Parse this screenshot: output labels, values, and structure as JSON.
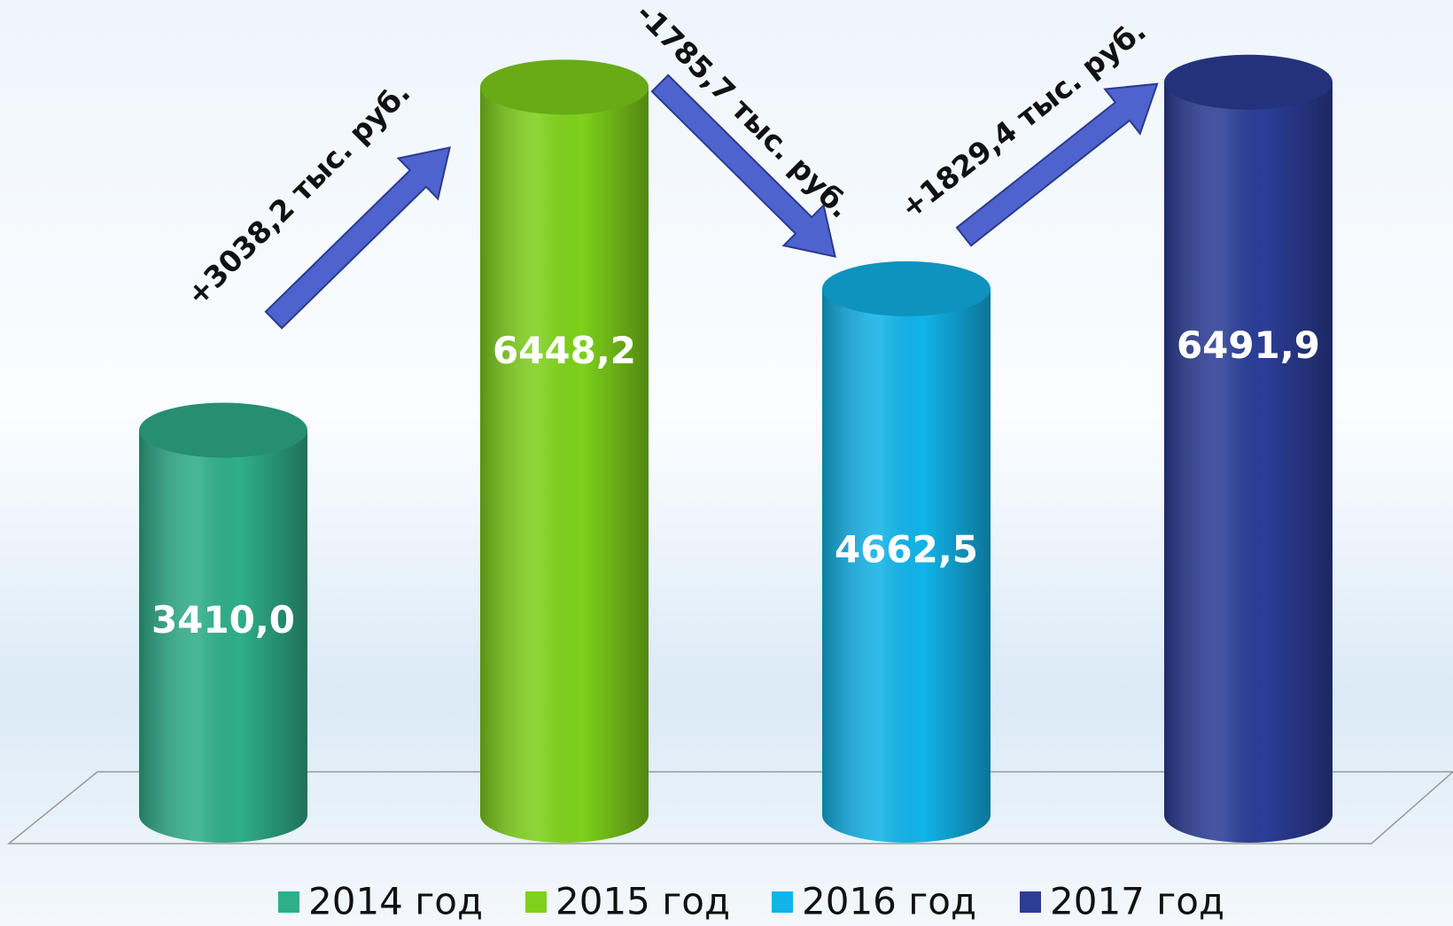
{
  "chart_data": {
    "type": "bar",
    "series": [
      {
        "name": "2014 год",
        "color": "#2fae8a",
        "values": [
          3410.0
        ],
        "value_labels": [
          "3410,0"
        ]
      },
      {
        "name": "2015 год",
        "color": "#7fd11c",
        "values": [
          6448.2
        ],
        "value_labels": [
          "6448,2"
        ]
      },
      {
        "name": "2016 год",
        "color": "#12b3e8",
        "values": [
          4662.5
        ],
        "value_labels": [
          "4662,5"
        ]
      },
      {
        "name": "2017 год",
        "color": "#2b3d96",
        "values": [
          6491.9
        ],
        "value_labels": [
          "6491,9"
        ]
      }
    ],
    "annotations": [
      "+3038,2 тыс. руб.",
      "-1785,7 тыс. руб.",
      "+1829,4 тыс. руб."
    ],
    "ylim": [
      0,
      7000
    ],
    "legend": "bottom"
  }
}
